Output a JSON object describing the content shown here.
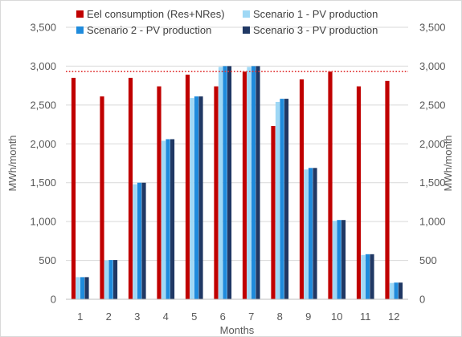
{
  "chart_data": {
    "type": "bar",
    "categories": [
      "1",
      "2",
      "3",
      "4",
      "5",
      "6",
      "7",
      "8",
      "9",
      "10",
      "11",
      "12"
    ],
    "series": [
      {
        "name": "Eel consumption (Res+NRes)",
        "color": "#c00000",
        "values": [
          2850,
          2610,
          2850,
          2740,
          2890,
          2740,
          2930,
          2230,
          2830,
          2930,
          2740,
          2810
        ]
      },
      {
        "name": "Scenario 1 - PV production",
        "color": "#9fd8f5",
        "values": [
          285,
          500,
          1480,
          2040,
          2590,
          2990,
          2990,
          2540,
          1670,
          1010,
          570,
          210
        ]
      },
      {
        "name": "Scenario 2 - PV production",
        "color": "#1f8bdc",
        "values": [
          285,
          505,
          1500,
          2060,
          2610,
          3000,
          3000,
          2580,
          1690,
          1020,
          580,
          215
        ]
      },
      {
        "name": "Scenario 3 - PV production",
        "color": "#203864",
        "values": [
          285,
          505,
          1500,
          2060,
          2610,
          3000,
          3000,
          2580,
          1690,
          1020,
          580,
          215
        ]
      }
    ],
    "reference_line": {
      "value": 2930,
      "style": "dotted",
      "color": "#e03030"
    },
    "xlabel": "Months",
    "ylabel_left": "MWh/month",
    "ylabel_right": "MWh/month",
    "ylim": [
      0,
      3500
    ],
    "yticks": [
      "0",
      "500",
      "1,000",
      "1,500",
      "2,000",
      "2,500",
      "3,000",
      "3,500"
    ],
    "grid": true,
    "legend_position": "top"
  }
}
